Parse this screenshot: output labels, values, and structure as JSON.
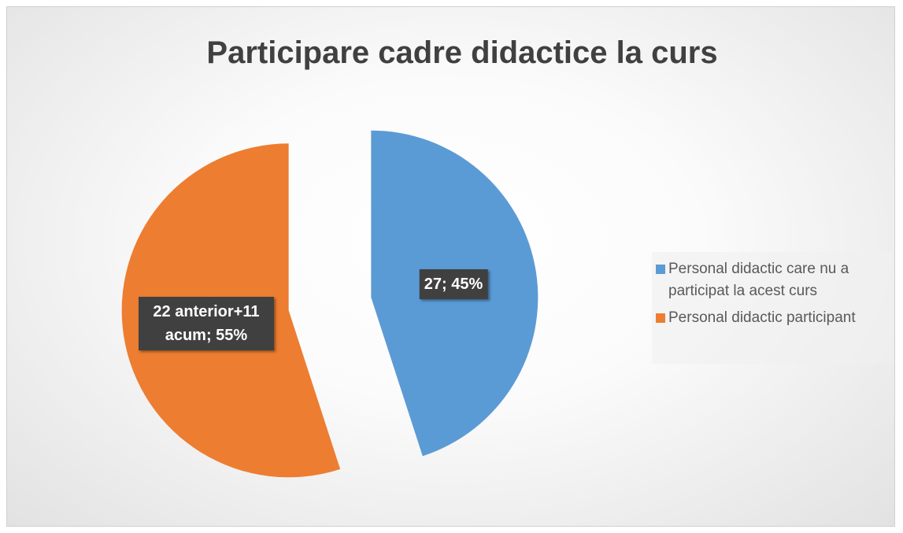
{
  "chart_data": {
    "type": "pie",
    "title": "Participare cadre didactice la curs",
    "categories": [
      "Personal didactic care nu a participat la acest curs",
      "Personal didactic participant"
    ],
    "values": [
      45,
      55
    ],
    "value_labels": [
      "27; 45%",
      "22 anterior+11 acum; 55%"
    ],
    "colors": [
      "#5b9bd5",
      "#ed7d31"
    ],
    "exploded": true,
    "legend": "right"
  }
}
